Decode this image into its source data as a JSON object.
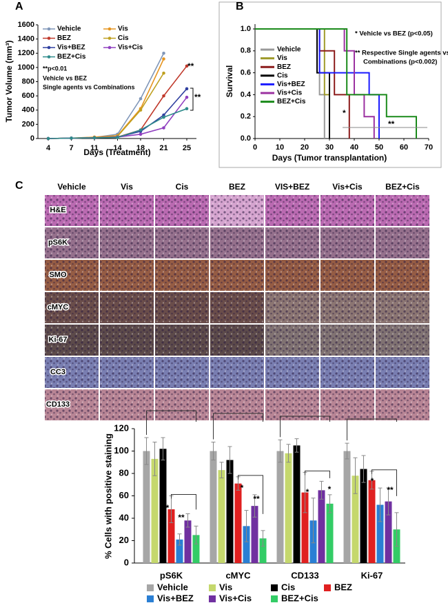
{
  "panel_labels": [
    "A",
    "B",
    "C"
  ],
  "histology": {
    "columns": [
      "Vehicle",
      "Vis",
      "Cis",
      "BEZ",
      "VIS+BEZ",
      "Vis+Cis",
      "BEZ+Cis"
    ],
    "rows": [
      "H&E",
      "pS6K",
      "SMO",
      "cMYC",
      "Ki-67",
      "CC3",
      "CD133"
    ]
  },
  "chart_data": [
    {
      "type": "line",
      "x_label": "Days (Treatment)",
      "y_label": "Tumor Volume (mm³)",
      "categories": [
        "4",
        "7",
        "11",
        "14",
        "18",
        "21",
        "25"
      ],
      "ylim": [
        0,
        1600
      ],
      "yticks": [
        0,
        200,
        400,
        600,
        800,
        1000,
        1200,
        1400,
        1600
      ],
      "legend": "upper left",
      "series": [
        {
          "name": "Vehicle",
          "color": "#7f96b8",
          "values": [
            0,
            5,
            15,
            60,
            560,
            1200,
            null
          ]
        },
        {
          "name": "Vis",
          "color": "#e69520",
          "values": [
            0,
            5,
            20,
            40,
            420,
            1120,
            null
          ]
        },
        {
          "name": "BEZ",
          "color": "#c0392b",
          "values": [
            0,
            5,
            10,
            20,
            120,
            600,
            1020
          ]
        },
        {
          "name": "Cis",
          "color": "#bfa020",
          "values": [
            0,
            5,
            10,
            30,
            400,
            920,
            null
          ]
        },
        {
          "name": "Vis+BEZ",
          "color": "#3040a0",
          "values": [
            0,
            5,
            10,
            20,
            100,
            330,
            700
          ]
        },
        {
          "name": "Vis+Cis",
          "color": "#9040c0",
          "values": [
            0,
            5,
            10,
            20,
            60,
            150,
            580
          ]
        },
        {
          "name": "BEZ+Cis",
          "color": "#2e8b8b",
          "values": [
            0,
            5,
            10,
            15,
            120,
            300,
            420
          ]
        }
      ],
      "annotations": [
        "**p<0.01",
        "Vehicle vs BEZ",
        "Single agents vs Combinations",
        "**",
        "**"
      ]
    },
    {
      "type": "step",
      "x_label": "Days (Tumor transplantation)",
      "y_label": "Survival",
      "xlim": [
        0,
        70
      ],
      "xticks": [
        0,
        10,
        20,
        30,
        40,
        50,
        60,
        70
      ],
      "ylim": [
        0,
        1
      ],
      "yticks": [
        {
          "value": 0,
          "label": "0.0"
        },
        0.2,
        0.4,
        0.6,
        0.8,
        {
          "value": 1,
          "label": "1.0"
        }
      ],
      "legend": "center left",
      "series": [
        {
          "name": "Vehicle",
          "color": "#999999",
          "x": [
            0,
            26,
            28
          ],
          "values": [
            1,
            0.4,
            0
          ]
        },
        {
          "name": "Vis",
          "color": "#9e9a2a",
          "x": [
            0,
            28,
            30
          ],
          "values": [
            1,
            0.4,
            0
          ]
        },
        {
          "name": "BEZ",
          "color": "#8b1a1a",
          "x": [
            0,
            26,
            32,
            38
          ],
          "values": [
            1,
            0.8,
            0.4,
            0
          ]
        },
        {
          "name": "Cis",
          "color": "#000000",
          "x": [
            0,
            25,
            30
          ],
          "values": [
            1,
            0.6,
            0
          ]
        },
        {
          "name": "Vis+BEZ",
          "color": "#1a1aff",
          "x": [
            0,
            26,
            46,
            50
          ],
          "values": [
            1,
            0.6,
            0.4,
            0
          ]
        },
        {
          "name": "Vis+Cis",
          "color": "#9b30a0",
          "x": [
            0,
            36,
            40,
            44,
            48
          ],
          "values": [
            1,
            0.8,
            0.4,
            0.2,
            0
          ]
        },
        {
          "name": "BEZ+Cis",
          "color": "#1a8a1a",
          "x": [
            0,
            37,
            53,
            65
          ],
          "values": [
            1,
            0.4,
            0.2,
            0
          ]
        }
      ],
      "annotations": [
        "* Vehicle vs BEZ (p<0.05)",
        "** Respective Single agents vs",
        "Combinations (p<0.002)",
        "*",
        "**"
      ]
    },
    {
      "type": "bar",
      "y_label": "% Cells with positive staining",
      "categories": [
        "pS6K",
        "cMYC",
        "CD133",
        "Ki-67"
      ],
      "ylim": [
        0,
        120
      ],
      "yticks": [
        0,
        20,
        40,
        60,
        80,
        100,
        120
      ],
      "legend": "lower center",
      "series": [
        {
          "name": "Vehicle",
          "color": "#a6a6a6",
          "values": [
            100,
            100,
            100,
            100
          ],
          "errors": [
            12,
            8,
            10,
            7
          ]
        },
        {
          "name": "Vis",
          "color": "#c5d86d",
          "values": [
            93,
            83,
            98,
            78
          ],
          "errors": [
            15,
            7,
            8,
            16
          ]
        },
        {
          "name": "Cis",
          "color": "#000000",
          "values": [
            102,
            92,
            105,
            84
          ],
          "errors": [
            10,
            12,
            6,
            12
          ]
        },
        {
          "name": "BEZ",
          "color": "#e02020",
          "values": [
            48,
            71,
            63,
            74
          ],
          "errors": [
            12,
            6,
            18,
            8
          ]
        },
        {
          "name": "Vis+BEZ",
          "color": "#2a7fd4",
          "values": [
            21,
            33,
            38,
            52
          ],
          "errors": [
            5,
            14,
            20,
            15
          ]
        },
        {
          "name": "Vis+Cis",
          "color": "#7030a0",
          "values": [
            38,
            51,
            65,
            55
          ],
          "errors": [
            6,
            10,
            8,
            12
          ]
        },
        {
          "name": "BEZ+Cis",
          "color": "#33cc66",
          "values": [
            25,
            22,
            53,
            30
          ],
          "errors": [
            8,
            7,
            8,
            15
          ]
        }
      ],
      "annotations": [
        "*",
        "**",
        "*",
        "**",
        "*",
        "*",
        "*",
        "**"
      ]
    }
  ]
}
